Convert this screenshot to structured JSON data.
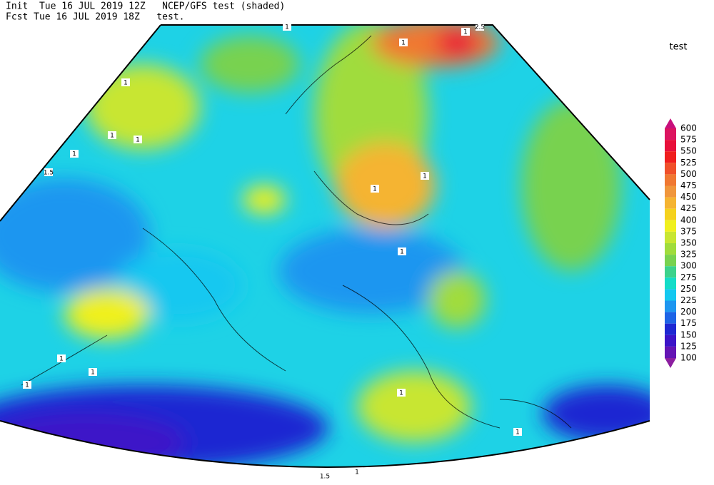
{
  "header": {
    "line1": "Init  Tue 16 JUL 2019 12Z   NCEP/GFS test (shaded)",
    "line2": "Fcst Tue 16 JUL 2019 18Z   test."
  },
  "legend": {
    "title": "test",
    "labels": [
      "600",
      "575",
      "550",
      "525",
      "500",
      "475",
      "450",
      "425",
      "400",
      "375",
      "350",
      "325",
      "300",
      "275",
      "250",
      "225",
      "200",
      "175",
      "150",
      "125",
      "100"
    ],
    "colors": [
      "#c8107c",
      "#dc1460",
      "#e8103a",
      "#f01e1e",
      "#f0502a",
      "#f07832",
      "#f0963c",
      "#f5b432",
      "#f5d21e",
      "#f0f01e",
      "#c8e632",
      "#a0dc3c",
      "#78d250",
      "#3cd28c",
      "#14dcc8",
      "#14c8f0",
      "#1e96f0",
      "#1e64e6",
      "#1e28d2",
      "#3c14c8",
      "#6414b4",
      "#8c1ea0"
    ]
  },
  "contour_labels": [
    "1",
    "1",
    "1",
    "1",
    "1",
    "1.5",
    "1",
    "1",
    "1",
    "1",
    "1",
    "1",
    "1",
    "1",
    "1",
    "1.5",
    "1",
    "1",
    "2.5"
  ]
}
